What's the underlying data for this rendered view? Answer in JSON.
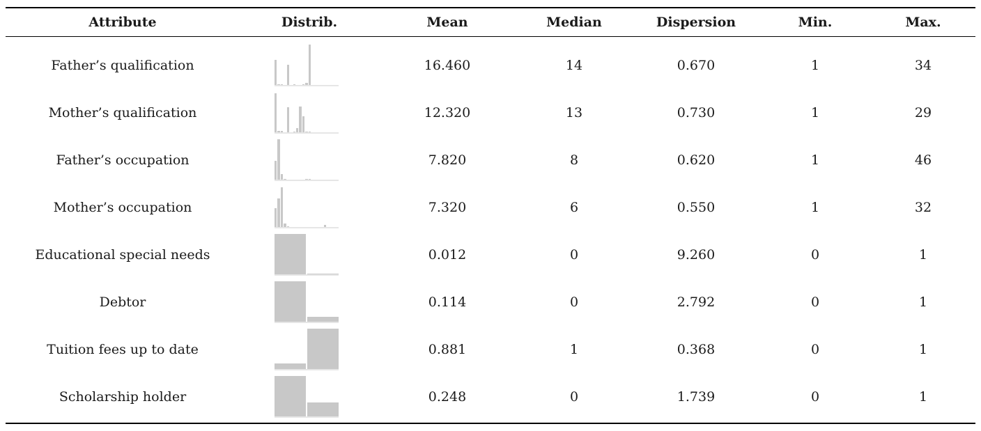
{
  "table": {
    "headers": {
      "attribute": "Attribute",
      "distrib": "Distrib.",
      "mean": "Mean",
      "median": "Median",
      "dispersion": "Dispersion",
      "min": "Min.",
      "max": "Max."
    },
    "bar_color": "#c8c8c8",
    "rows": [
      {
        "attribute": "Father’s qualification",
        "mean": "16.460",
        "median": "14",
        "dispersion": "0.670",
        "min": "1",
        "max": "34",
        "distribution": [
          0.62,
          0.02,
          0.02,
          0.0,
          0.5,
          0.0,
          0.02,
          0.0,
          0.0,
          0.02,
          0.06,
          1.0,
          0.0,
          0.0,
          0.0,
          0.0,
          0.0,
          0.0,
          0.0,
          0.0,
          0.0
        ]
      },
      {
        "attribute": "Mother’s qualification",
        "mean": "12.320",
        "median": "13",
        "dispersion": "0.730",
        "min": "1",
        "max": "29",
        "distribution": [
          0.97,
          0.04,
          0.04,
          0.0,
          0.62,
          0.0,
          0.02,
          0.1,
          0.64,
          0.4,
          0.02,
          0.02,
          0.0,
          0.0,
          0.0,
          0.0,
          0.0,
          0.0,
          0.0,
          0.0,
          0.0
        ]
      },
      {
        "attribute": "Father’s occupation",
        "mean": "7.820",
        "median": "8",
        "dispersion": "0.620",
        "min": "1",
        "max": "46",
        "distribution": [
          0.46,
          1.0,
          0.14,
          0.02,
          0.0,
          0.0,
          0.0,
          0.0,
          0.0,
          0.0,
          0.02,
          0.02,
          0.0,
          0.0,
          0.0,
          0.0,
          0.0,
          0.0,
          0.0,
          0.0,
          0.0
        ]
      },
      {
        "attribute": "Mother’s occupation",
        "mean": "7.320",
        "median": "6",
        "dispersion": "0.550",
        "min": "1",
        "max": "32",
        "distribution": [
          0.46,
          0.7,
          0.98,
          0.08,
          0.02,
          0.0,
          0.0,
          0.0,
          0.0,
          0.0,
          0.0,
          0.0,
          0.0,
          0.0,
          0.0,
          0.0,
          0.06,
          0.0,
          0.0,
          0.0,
          0.0
        ]
      },
      {
        "attribute": "Educational special needs",
        "mean": "0.012",
        "median": "0",
        "dispersion": "9.260",
        "min": "0",
        "max": "1",
        "distribution": [
          1.0,
          0.02
        ]
      },
      {
        "attribute": "Debtor",
        "mean": "0.114",
        "median": "0",
        "dispersion": "2.792",
        "min": "0",
        "max": "1",
        "distribution": [
          1.0,
          0.12
        ]
      },
      {
        "attribute": "Tuition fees up to date",
        "mean": "0.881",
        "median": "1",
        "dispersion": "0.368",
        "min": "0",
        "max": "1",
        "distribution": [
          0.14,
          1.0
        ]
      },
      {
        "attribute": "Scholarship holder",
        "mean": "0.248",
        "median": "0",
        "dispersion": "1.739",
        "min": "0",
        "max": "1",
        "distribution": [
          1.0,
          0.34
        ]
      }
    ]
  }
}
